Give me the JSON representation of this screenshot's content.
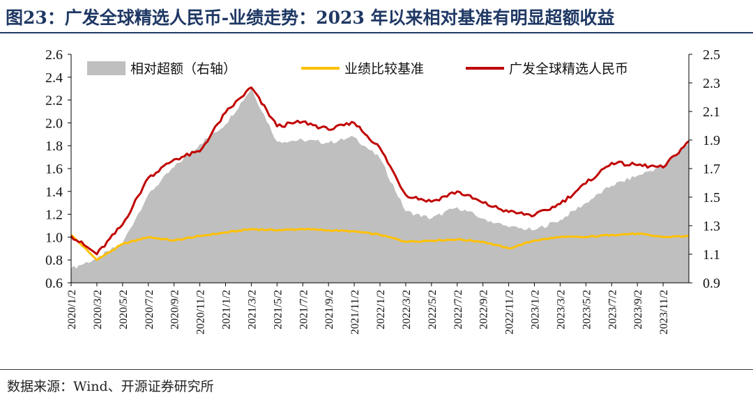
{
  "figure": {
    "title": "图23：广发全球精选人民币-业绩走势：2023 年以来相对基准有明显超额收益",
    "source": "数据来源：Wind、开源证券研究所"
  },
  "chart_data": {
    "type": "line",
    "legend_position": "top",
    "grid": false,
    "x": [
      "2020/1/2",
      "2020/3/2",
      "2020/5/2",
      "2020/7/2",
      "2020/9/2",
      "2020/11/2",
      "2021/1/2",
      "2021/3/2",
      "2021/5/2",
      "2021/7/2",
      "2021/9/2",
      "2021/11/2",
      "2022/1/2",
      "2022/3/2",
      "2022/5/2",
      "2022/7/2",
      "2022/9/2",
      "2022/11/2",
      "2023/1/2",
      "2023/3/2",
      "2023/5/2",
      "2023/7/2",
      "2023/9/2",
      "2023/11/2",
      "2023/12/29"
    ],
    "xticks": [
      "2020/1/2",
      "2020/3/2",
      "2020/5/2",
      "2020/7/2",
      "2020/9/2",
      "2020/11/2",
      "2021/1/2",
      "2021/3/2",
      "2021/5/2",
      "2021/7/2",
      "2021/9/2",
      "2021/11/2",
      "2022/1/2",
      "2022/3/2",
      "2022/5/2",
      "2022/7/2",
      "2022/9/2",
      "2022/11/2",
      "2023/1/2",
      "2023/3/2",
      "2023/5/2",
      "2023/7/2",
      "2023/9/2",
      "2023/11/2"
    ],
    "y_left": {
      "min": 0.6,
      "max": 2.6,
      "ticks": [
        "0.6",
        "0.8",
        "1.0",
        "1.2",
        "1.4",
        "1.6",
        "1.8",
        "2.0",
        "2.2",
        "2.4",
        "2.6"
      ]
    },
    "y_right": {
      "min": 0.9,
      "max": 2.5,
      "ticks": [
        "0.9",
        "1.1",
        "1.3",
        "1.5",
        "1.7",
        "1.9",
        "2.1",
        "2.3",
        "2.5"
      ]
    },
    "series": [
      {
        "name": "相对超额（右轴）",
        "kind": "area",
        "axis": "right",
        "color": "#bfbfbf",
        "values": [
          1.0,
          1.07,
          1.18,
          1.52,
          1.71,
          1.87,
          2.01,
          2.26,
          1.89,
          1.9,
          1.88,
          1.92,
          1.77,
          1.4,
          1.35,
          1.43,
          1.35,
          1.29,
          1.27,
          1.34,
          1.46,
          1.58,
          1.65,
          1.72,
          1.88
        ]
      },
      {
        "name": "业绩比较基准",
        "kind": "line",
        "axis": "left",
        "color": "#ffc000",
        "values": [
          1.02,
          0.8,
          0.94,
          1.0,
          0.97,
          1.01,
          1.04,
          1.07,
          1.06,
          1.07,
          1.06,
          1.05,
          1.02,
          0.96,
          0.97,
          0.98,
          0.96,
          0.9,
          0.97,
          1.0,
          1.0,
          1.02,
          1.03,
          1.0,
          1.01
        ]
      },
      {
        "name": "广发全球精选人民币",
        "kind": "line",
        "axis": "left",
        "color": "#c00000",
        "values": [
          1.01,
          0.85,
          1.11,
          1.52,
          1.68,
          1.75,
          2.09,
          2.31,
          1.97,
          2.01,
          1.94,
          2.0,
          1.78,
          1.37,
          1.31,
          1.4,
          1.3,
          1.22,
          1.19,
          1.29,
          1.47,
          1.65,
          1.63,
          1.61,
          1.84
        ]
      }
    ]
  }
}
